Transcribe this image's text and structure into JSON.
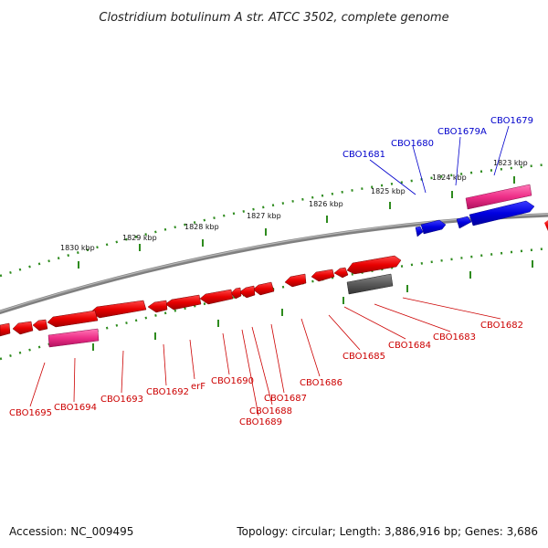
{
  "title": "Clostridium botulinum A str. ATCC 3502, complete genome",
  "footer": {
    "accession": "Accession: NC_009495",
    "summary": "Topology: circular; Length: 3,886,916 bp; Genes: 3,686"
  },
  "colors": {
    "forward_strand": "#0a0ae6",
    "reverse_strand": "#e60a0a",
    "pseudogene": "#e6287a",
    "other": "#666666",
    "backbone": "#808080",
    "ticks": "#2e8b1e"
  },
  "scale": {
    "unit_kbp": [
      1823,
      1824,
      1825,
      1826,
      1827,
      1828,
      1829,
      1830
    ],
    "labels": [
      "1823 kbp",
      "1824 kbp",
      "1825 kbp",
      "1826 kbp",
      "1827 kbp",
      "1828 kbp",
      "1829 kbp",
      "1830 kbp"
    ]
  },
  "genes": {
    "forward": [
      "CBO1679",
      "CBO1679A",
      "CBO1680",
      "CBO1681"
    ],
    "reverse": [
      "CBO1682",
      "CBO1683",
      "CBO1684",
      "CBO1685",
      "CBO1686",
      "CBO1687",
      "CBO1688",
      "CBO1689",
      "CBO1690",
      "erF",
      "CBO1692",
      "CBO1693",
      "CBO1694",
      "CBO1695"
    ]
  }
}
